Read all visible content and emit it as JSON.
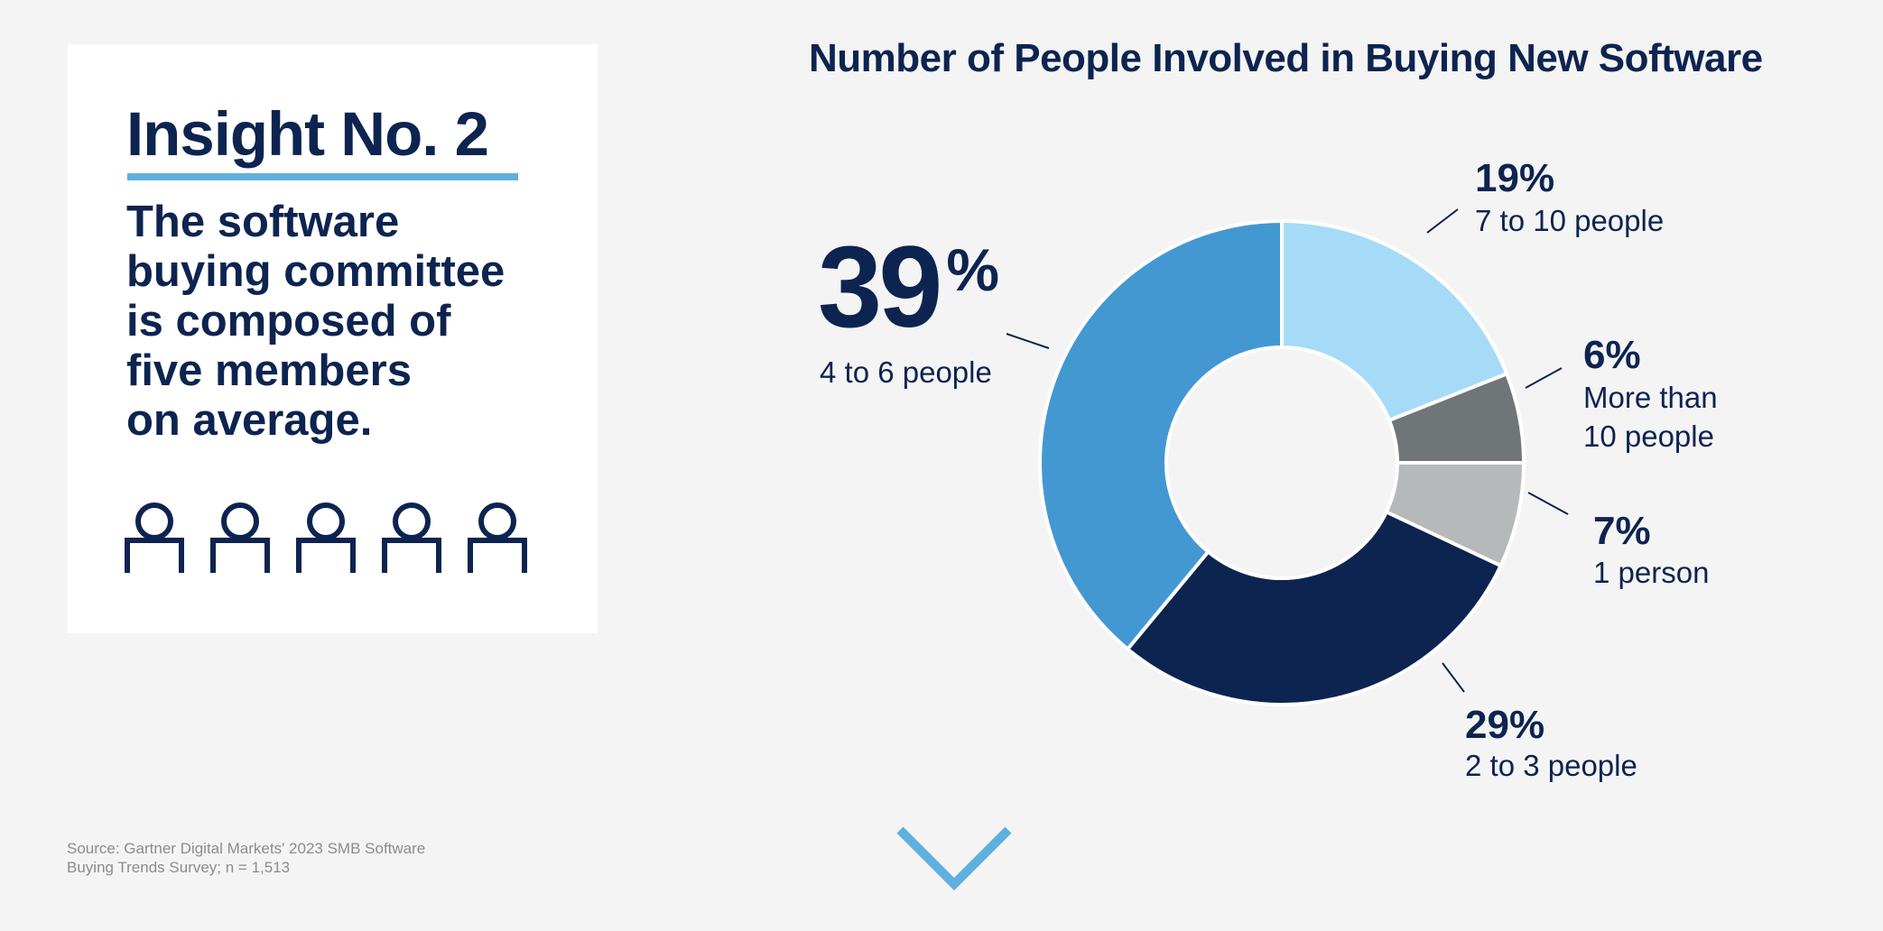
{
  "insight": {
    "title": "Insight No. 2",
    "text_lines": [
      "The software",
      "buying committee",
      "is composed of",
      "five members",
      "on average."
    ],
    "people_icon_count": 5
  },
  "source": {
    "lines": [
      "Source: Gartner Digital Markets' 2023 SMB Software",
      "Buying Trends Survey; n = 1,513"
    ]
  },
  "colors": {
    "navy": "#0d2450",
    "accent_blue": "#5fb0df"
  },
  "scroll_icon": "chevron-down-icon",
  "chart_data": {
    "type": "pie",
    "title": "Number of People Involved in Buying New Software",
    "slices": [
      {
        "label": "7 to 10 people",
        "label_lines": [
          "7 to 10 people"
        ],
        "value": 19,
        "pct_text": "19%",
        "color": "#a5dbf7"
      },
      {
        "label": "More than 10 people",
        "label_lines": [
          "More than",
          "10 people"
        ],
        "value": 6,
        "pct_text": "6%",
        "color": "#707578"
      },
      {
        "label": "1 person",
        "label_lines": [
          "1 person"
        ],
        "value": 7,
        "pct_text": "7%",
        "color": "#b5b9b9"
      },
      {
        "label": "2 to 3 people",
        "label_lines": [
          "2 to 3 people"
        ],
        "value": 29,
        "pct_text": "29%",
        "color": "#0d2450"
      },
      {
        "label": "4 to 6 people",
        "label_lines": [
          "4 to 6 people"
        ],
        "value": 39,
        "pct_text": "39%",
        "pct_number": "39",
        "pct_symbol": "%",
        "color": "#4498d2",
        "highlight": true
      }
    ]
  }
}
